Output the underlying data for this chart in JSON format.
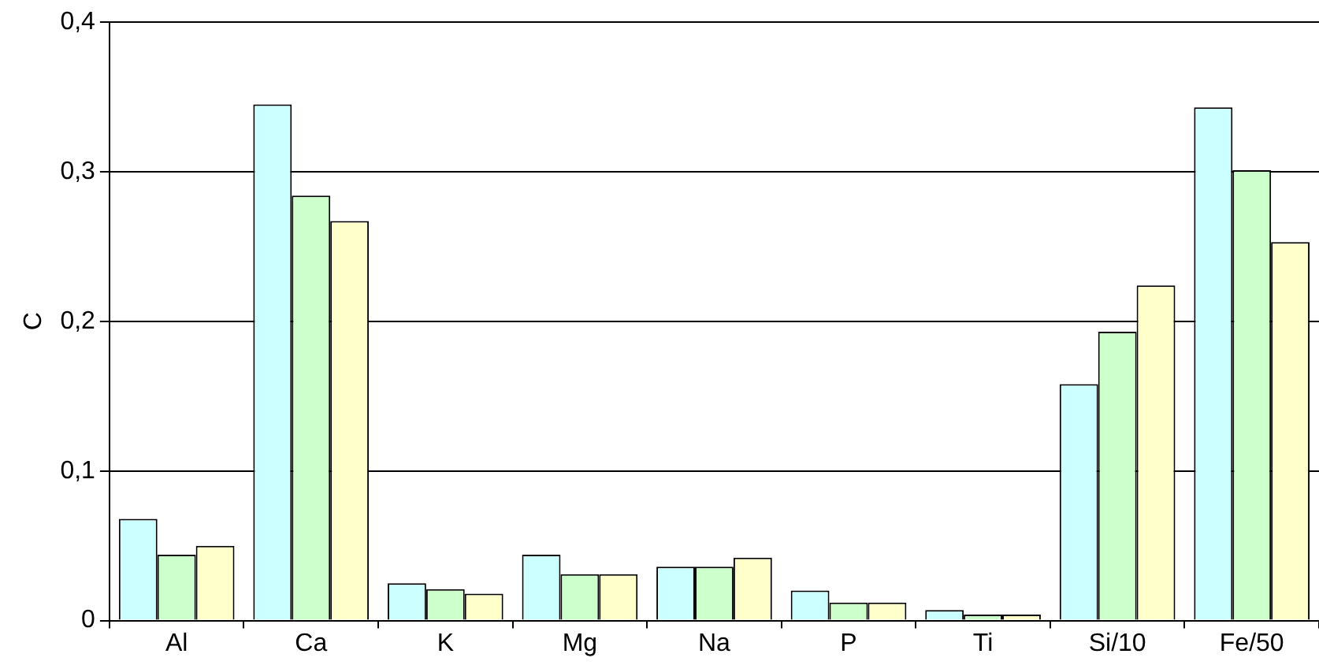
{
  "chart_data": {
    "type": "bar",
    "ylabel": "C",
    "categories": [
      "Al",
      "Ca",
      "K",
      "Mg",
      "Na",
      "P",
      "Ti",
      "Si/10",
      "Fe/50"
    ],
    "series": [
      {
        "color": "#ccffff",
        "values": [
          0.068,
          0.345,
          0.025,
          0.044,
          0.036,
          0.02,
          0.007,
          0.158,
          0.343
        ]
      },
      {
        "color": "#ccffcc",
        "values": [
          0.044,
          0.284,
          0.021,
          0.031,
          0.036,
          0.012,
          0.004,
          0.193,
          0.301
        ]
      },
      {
        "color": "#ffffcc",
        "values": [
          0.05,
          0.267,
          0.018,
          0.031,
          0.042,
          0.012,
          0.004,
          0.224,
          0.253
        ]
      }
    ],
    "ylim": [
      0,
      0.4
    ],
    "yticks": [
      {
        "value": 0,
        "label": "0"
      },
      {
        "value": 0.1,
        "label": "0,1"
      },
      {
        "value": 0.2,
        "label": "0,2"
      },
      {
        "value": 0.3,
        "label": "0,3"
      },
      {
        "value": 0.4,
        "label": "0,4"
      }
    ],
    "grid": "y",
    "legend": false
  }
}
